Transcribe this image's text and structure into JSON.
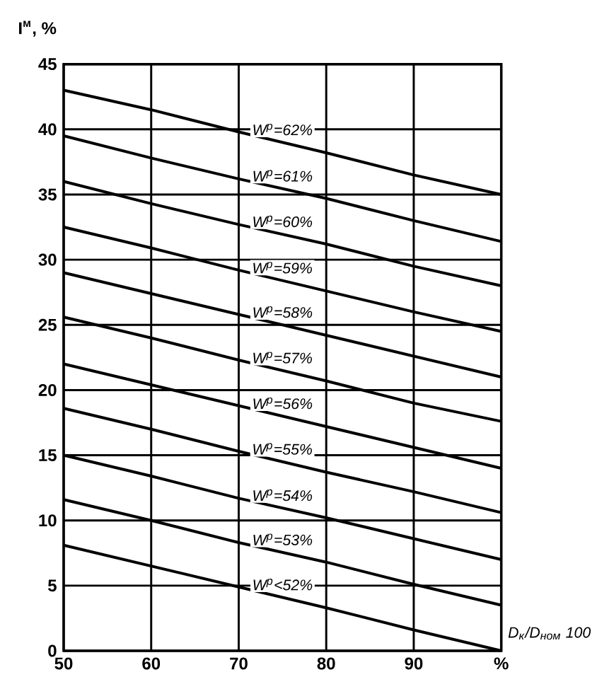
{
  "chart_data": {
    "type": "line",
    "ylabel": "I$^{м}$, %",
    "xlabel": "D$_{к}$/D$_{ном}$ 100",
    "x": [
      50,
      60,
      70,
      80,
      90,
      100
    ],
    "xlim": [
      50,
      100
    ],
    "ylim": [
      0,
      45
    ],
    "xticks": [
      50,
      60,
      70,
      80,
      90,
      {
        "value": 100,
        "label": "%"
      }
    ],
    "yticks": [
      0,
      5,
      10,
      15,
      20,
      25,
      30,
      35,
      40,
      45
    ],
    "grid": true,
    "legend": false,
    "marker": "none",
    "line_style": "solid",
    "series": [
      {
        "name": "W$^{р}$=62%",
        "color": "#000000",
        "values": [
          43.0,
          41.5,
          39.8,
          38.2,
          36.5,
          35.0
        ]
      },
      {
        "name": "W$^{р}$=61%",
        "color": "#000000",
        "values": [
          39.5,
          37.8,
          36.2,
          34.7,
          33.0,
          31.4
        ]
      },
      {
        "name": "W$^{р}$=60%",
        "color": "#000000",
        "values": [
          36.0,
          34.3,
          32.7,
          31.2,
          29.5,
          28.0
        ]
      },
      {
        "name": "W$^{р}$=59%",
        "color": "#000000",
        "values": [
          32.5,
          30.9,
          29.2,
          27.6,
          26.0,
          24.5
        ]
      },
      {
        "name": "W$^{р}$=58%",
        "color": "#000000",
        "values": [
          29.0,
          27.4,
          25.8,
          24.2,
          22.6,
          21.0
        ]
      },
      {
        "name": "W$^{р}$=57%",
        "color": "#000000",
        "values": [
          25.6,
          24.0,
          22.3,
          20.7,
          19.0,
          17.6
        ]
      },
      {
        "name": "W$^{р}$=56%",
        "color": "#000000",
        "values": [
          22.0,
          20.4,
          18.8,
          17.2,
          15.6,
          14.0
        ]
      },
      {
        "name": "W$^{р}$=55%",
        "color": "#000000",
        "values": [
          18.6,
          17.0,
          15.3,
          13.7,
          12.2,
          10.6
        ]
      },
      {
        "name": "W$^{р}$=54%",
        "color": "#000000",
        "values": [
          15.0,
          13.4,
          11.7,
          10.2,
          8.6,
          7.0
        ]
      },
      {
        "name": "W$^{р}$=53%",
        "color": "#000000",
        "values": [
          11.6,
          10.0,
          8.3,
          6.8,
          5.1,
          3.5
        ]
      },
      {
        "name": "W$^{р}$<52%",
        "color": "#000000",
        "values": [
          8.1,
          6.5,
          4.9,
          3.3,
          1.6,
          0.0
        ]
      }
    ]
  }
}
